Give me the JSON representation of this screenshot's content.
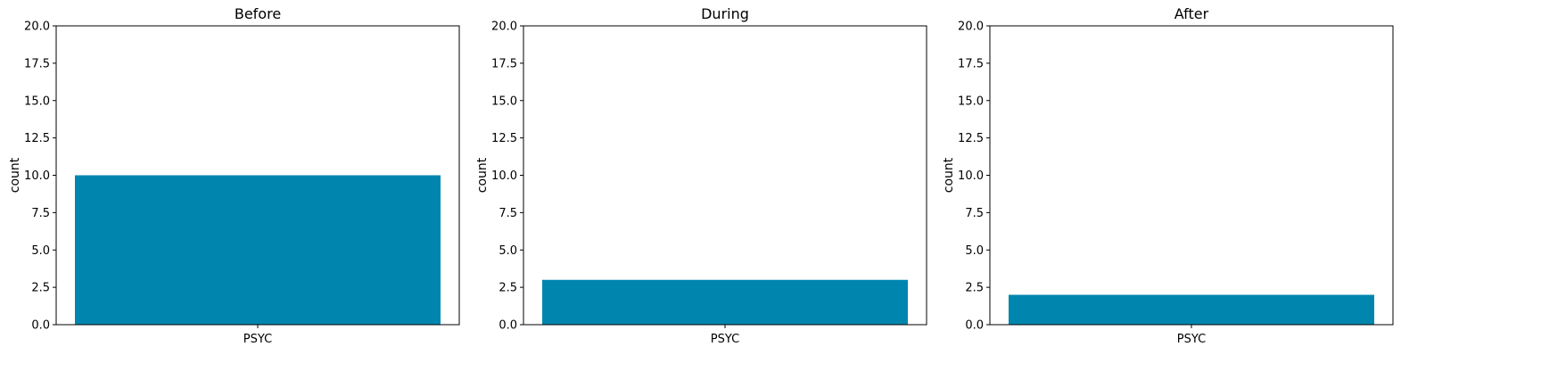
{
  "chart_data": [
    {
      "type": "bar",
      "title": "Before",
      "categories": [
        "PSYC"
      ],
      "values": [
        10
      ],
      "xlabel": "",
      "ylabel": "count",
      "ylim": [
        0,
        20
      ],
      "yticks": [
        "0.0",
        "2.5",
        "5.0",
        "7.5",
        "10.0",
        "12.5",
        "15.0",
        "17.5",
        "20.0"
      ],
      "bar_color": "#0086ae",
      "grid": false
    },
    {
      "type": "bar",
      "title": "During",
      "categories": [
        "PSYC"
      ],
      "values": [
        3
      ],
      "xlabel": "",
      "ylabel": "count",
      "ylim": [
        0,
        20
      ],
      "yticks": [
        "0.0",
        "2.5",
        "5.0",
        "7.5",
        "10.0",
        "12.5",
        "15.0",
        "17.5",
        "20.0"
      ],
      "bar_color": "#0086ae",
      "grid": false
    },
    {
      "type": "bar",
      "title": "After",
      "categories": [
        "PSYC"
      ],
      "values": [
        2
      ],
      "xlabel": "",
      "ylabel": "count",
      "ylim": [
        0,
        20
      ],
      "yticks": [
        "0.0",
        "2.5",
        "5.0",
        "7.5",
        "10.0",
        "12.5",
        "15.0",
        "17.5",
        "20.0"
      ],
      "bar_color": "#0086ae",
      "grid": false
    }
  ]
}
